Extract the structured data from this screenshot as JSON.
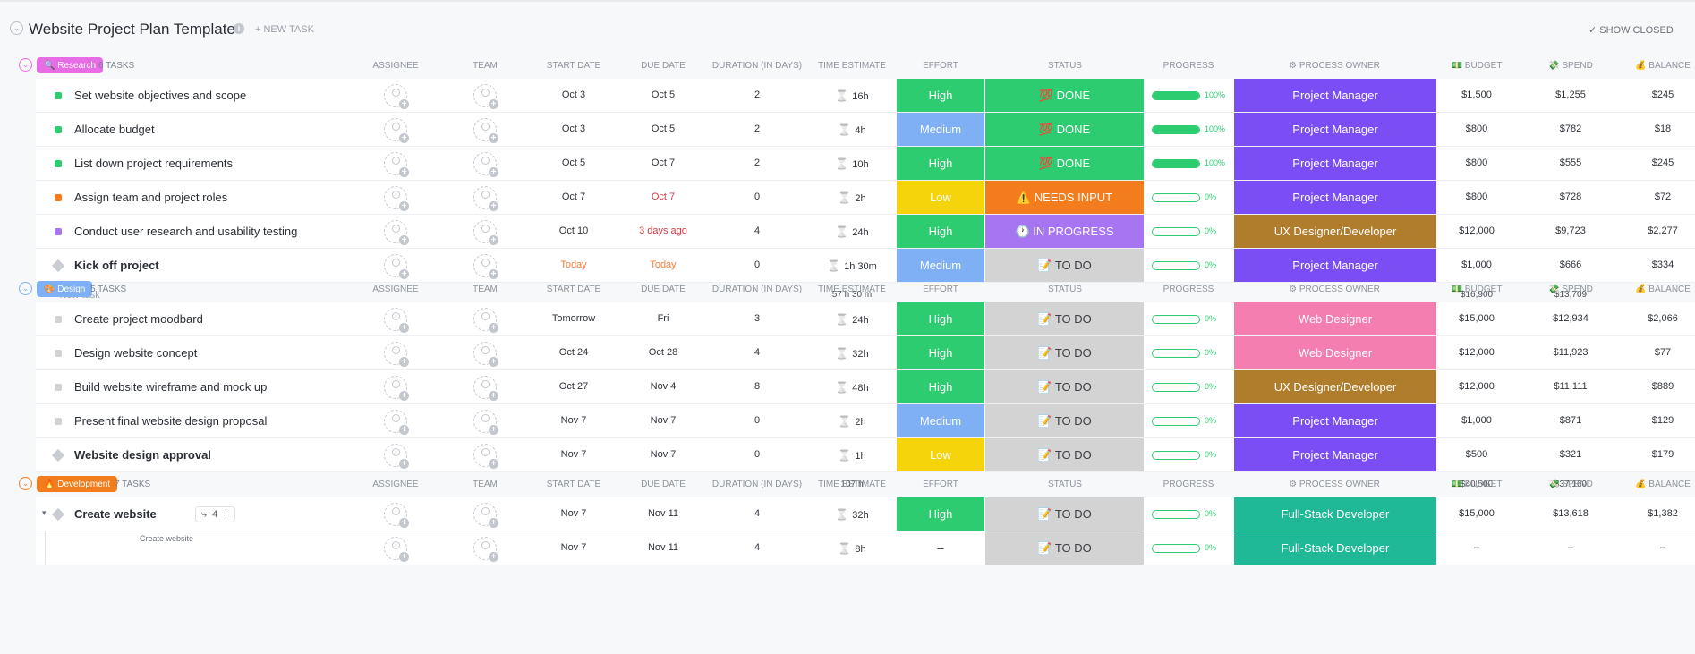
{
  "header": {
    "title": "Website Project Plan Template",
    "info_icon": "i",
    "new_task": "+ NEW TASK",
    "show_closed": "✓ SHOW CLOSED"
  },
  "columns": {
    "assignee": "ASSIGNEE",
    "team": "TEAM",
    "start_date": "START DATE",
    "due_date": "DUE DATE",
    "duration": "DURATION (IN DAYS)",
    "time_estimate": "TIME ESTIMATE",
    "effort": "EFFORT",
    "status": "STATUS",
    "progress": "PROGRESS",
    "process_owner": "⚙ PROCESS OWNER",
    "budget": "💵 BUDGET",
    "spend": "💸 SPEND",
    "balance": "💰 BALANCE"
  },
  "colors": {
    "high": "#2ecc71",
    "medium": "#7fb0f5",
    "low": "#f5d40c",
    "done": "#2ecc71",
    "needs_input": "#f37d1c",
    "in_progress": "#a875f2",
    "to_do": "#d3d3d3",
    "project_manager": "#7a4df5",
    "ux_designer": "#b07d2c",
    "web_designer": "#f57eb0",
    "fullstack": "#1fb998"
  },
  "groups": [
    {
      "label": "🔍 Research",
      "color": "#e86ce6",
      "count": "6 TASKS",
      "new_task": "+ New task",
      "totals": {
        "time": "57 h 30 m",
        "budget": "$16,900",
        "spend": "$13,709"
      },
      "tasks": [
        {
          "name": "Set website objectives and scope",
          "dot": "#2ecc71",
          "start": "Oct 3",
          "due": "Oct 5",
          "duration": "2",
          "estimate": "16h",
          "effort": "High",
          "status": "💯 DONE",
          "progress": "100%",
          "owner": "Project Manager",
          "budget": "$1,500",
          "spend": "$1,255",
          "balance": "$245"
        },
        {
          "name": "Allocate budget",
          "dot": "#2ecc71",
          "start": "Oct 3",
          "due": "Oct 5",
          "duration": "2",
          "estimate": "4h",
          "effort": "Medium",
          "status": "💯 DONE",
          "progress": "100%",
          "owner": "Project Manager",
          "budget": "$800",
          "spend": "$782",
          "balance": "$18"
        },
        {
          "name": "List down project requirements",
          "dot": "#2ecc71",
          "start": "Oct 5",
          "due": "Oct 7",
          "duration": "2",
          "estimate": "10h",
          "effort": "High",
          "status": "💯 DONE",
          "progress": "100%",
          "owner": "Project Manager",
          "budget": "$800",
          "spend": "$555",
          "balance": "$245"
        },
        {
          "name": "Assign team and project roles",
          "dot": "#f37d1c",
          "start": "Oct 7",
          "due": "Oct 7",
          "duration": "0",
          "estimate": "2h",
          "effort": "Low",
          "status": "⚠️ NEEDS INPUT",
          "progress": "0%",
          "owner": "Project Manager",
          "budget": "$800",
          "spend": "$728",
          "balance": "$72"
        },
        {
          "name": "Conduct user research and usability testing",
          "dot": "#a875f2",
          "start": "Oct 10",
          "due": "3 days ago",
          "duration": "4",
          "estimate": "24h",
          "effort": "High",
          "status": "🕐 IN PROGRESS",
          "progress": "0%",
          "owner": "UX Designer/Developer",
          "budget": "$12,000",
          "spend": "$9,723",
          "balance": "$2,277"
        },
        {
          "name": "Kick off project",
          "milestone": true,
          "start": "Today",
          "due": "Today",
          "duration": "0",
          "estimate": "1h 30m",
          "effort": "Medium",
          "status": "📝 TO DO",
          "progress": "0%",
          "owner": "Project Manager",
          "budget": "$1,000",
          "spend": "$666",
          "balance": "$334"
        }
      ]
    },
    {
      "label": "🎨 Design",
      "color": "#7fb0f5",
      "count": "5 TASKS",
      "new_task": "+ New task",
      "totals": {
        "time": "107 h",
        "budget": "$40,500",
        "spend": "$37,160"
      },
      "tasks": [
        {
          "name": "Create project moodbard",
          "dot": "#d3d3d3",
          "start": "Tomorrow",
          "due": "Fri",
          "duration": "3",
          "estimate": "24h",
          "effort": "High",
          "status": "📝 TO DO",
          "progress": "0%",
          "owner": "Web Designer",
          "budget": "$15,000",
          "spend": "$12,934",
          "balance": "$2,066"
        },
        {
          "name": "Design website concept",
          "dot": "#d3d3d3",
          "start": "Oct 24",
          "due": "Oct 28",
          "duration": "4",
          "estimate": "32h",
          "effort": "High",
          "status": "📝 TO DO",
          "progress": "0%",
          "owner": "Web Designer",
          "budget": "$12,000",
          "spend": "$11,923",
          "balance": "$77"
        },
        {
          "name": "Build website wireframe and mock up",
          "dot": "#d3d3d3",
          "start": "Oct 27",
          "due": "Nov 4",
          "duration": "8",
          "estimate": "48h",
          "effort": "High",
          "status": "📝 TO DO",
          "progress": "0%",
          "owner": "UX Designer/Developer",
          "budget": "$12,000",
          "spend": "$11,111",
          "balance": "$889"
        },
        {
          "name": "Present final website design proposal",
          "dot": "#d3d3d3",
          "start": "Nov 7",
          "due": "Nov 7",
          "duration": "0",
          "estimate": "2h",
          "effort": "Medium",
          "status": "📝 TO DO",
          "progress": "0%",
          "owner": "Project Manager",
          "budget": "$1,000",
          "spend": "$871",
          "balance": "$129"
        },
        {
          "name": "Website design approval",
          "milestone": true,
          "start": "Nov 7",
          "due": "Nov 7",
          "duration": "0",
          "estimate": "1h",
          "effort": "Low",
          "status": "📝 TO DO",
          "progress": "0%",
          "owner": "Project Manager",
          "budget": "$500",
          "spend": "$321",
          "balance": "$179"
        }
      ]
    },
    {
      "label": "🔥 Development",
      "color": "#f37d1c",
      "count": "7 TASKS",
      "tasks": [
        {
          "name": "Create website",
          "milestone": true,
          "subtasks": "4",
          "add": "+",
          "start": "Nov 7",
          "due": "Nov 11",
          "duration": "4",
          "estimate": "32h",
          "effort": "High",
          "status": "📝 TO DO",
          "progress": "0%",
          "owner": "Full-Stack Developer",
          "budget": "$15,000",
          "spend": "$13,618",
          "balance": "$1,382"
        },
        {
          "name": "",
          "parent": "Create website",
          "sub": true,
          "start": "Nov 7",
          "due": "Nov 11",
          "duration": "4",
          "estimate": "8h",
          "effort": "–",
          "status": "📝 TO DO",
          "progress": "0%",
          "owner": "Full-Stack Developer",
          "budget": "–",
          "spend": "–",
          "balance": "–"
        }
      ]
    }
  ]
}
